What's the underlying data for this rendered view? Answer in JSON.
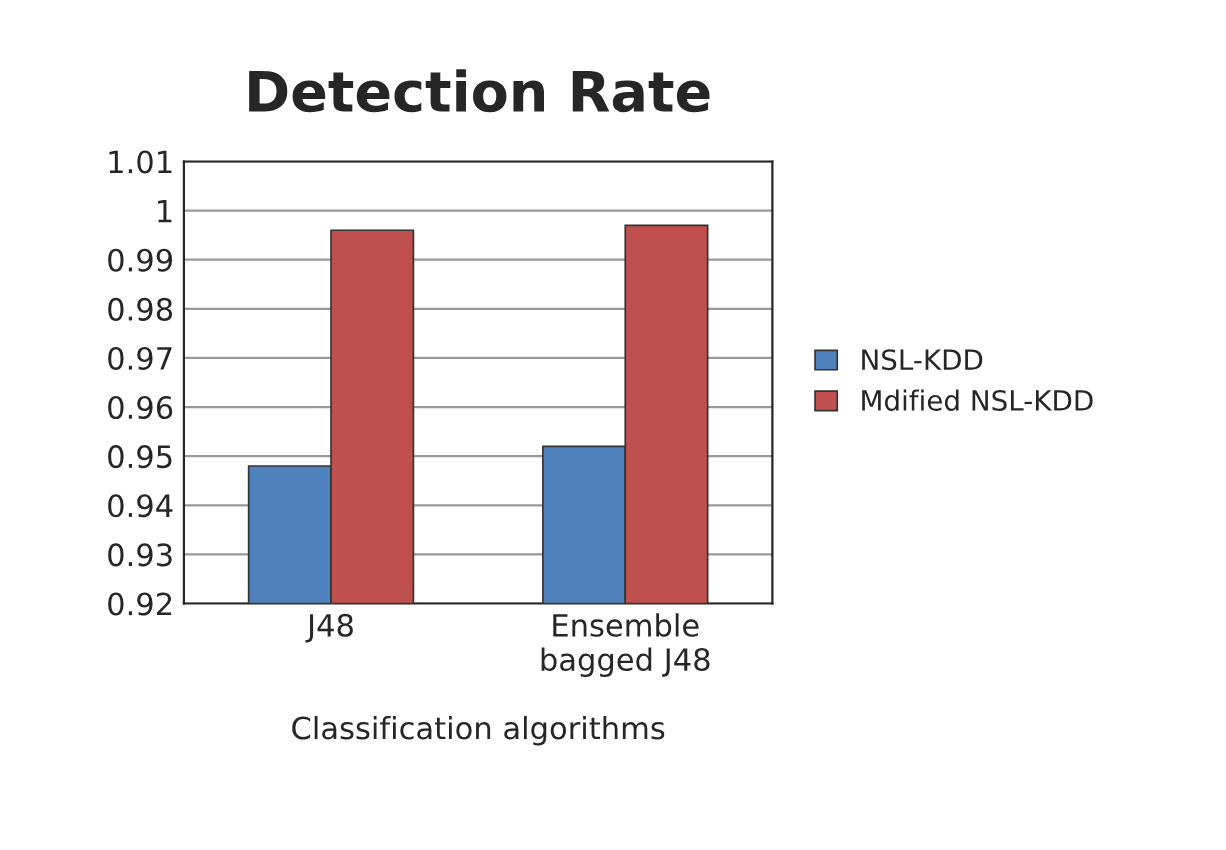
{
  "chart_data": {
    "type": "bar",
    "title": "Detection Rate",
    "xlabel": "Classification algorithms",
    "categories": [
      "J48",
      "Ensemble\nbagged J48"
    ],
    "series": [
      {
        "name": "NSL-KDD",
        "color": "#4f81bd",
        "values": [
          0.948,
          0.952
        ]
      },
      {
        "name": "Mdified NSL-KDD",
        "color": "#c0504d",
        "values": [
          0.996,
          0.997
        ]
      }
    ],
    "ylim": [
      0.92,
      1.01
    ],
    "yticks": [
      0.92,
      0.93,
      0.94,
      0.95,
      0.96,
      0.97,
      0.98,
      0.99,
      1,
      1.01
    ],
    "grid": "y",
    "legend": "right"
  }
}
